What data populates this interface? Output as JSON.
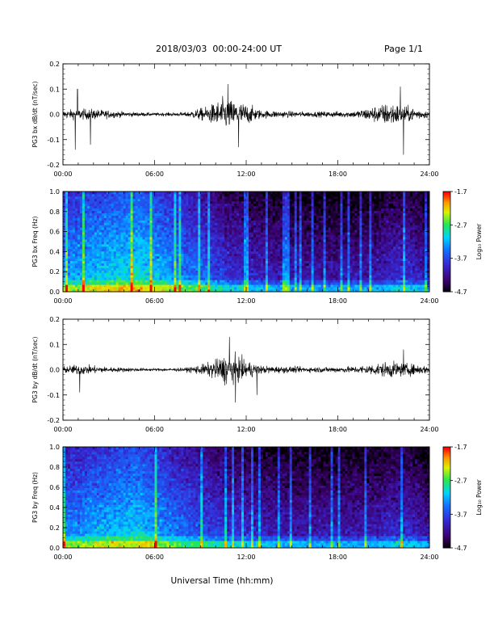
{
  "header": {
    "date_range": "2018/03/03  00:00-24:00 UT",
    "page": "Page 1/1"
  },
  "xlabel": "Universal Time (hh:mm)",
  "time_ticks": [
    "00:00",
    "06:00",
    "12:00",
    "18:00",
    "24:00"
  ],
  "colorbar": {
    "label": "Log₁₀ Power",
    "ticks": [
      "-1.7",
      "-2.7",
      "-3.7",
      "-4.7"
    ],
    "range": [
      -4.7,
      -1.7
    ]
  },
  "chart_data": [
    {
      "type": "line",
      "ylabel": "PG3 bx dB/dt (nT/sec)",
      "x_range_hours": [
        0,
        24
      ],
      "ylim": [
        -0.2,
        0.2
      ],
      "yticks": [
        "0.2",
        "0.1",
        "0.0",
        "-0.1",
        "-0.2"
      ],
      "envelope": [
        {
          "hour": 0,
          "amp": 0.015
        },
        {
          "hour": 1,
          "amp": 0.02
        },
        {
          "hour": 2,
          "amp": 0.02
        },
        {
          "hour": 4,
          "amp": 0.01
        },
        {
          "hour": 6,
          "amp": 0.006
        },
        {
          "hour": 8,
          "amp": 0.008
        },
        {
          "hour": 9.5,
          "amp": 0.03
        },
        {
          "hour": 10.5,
          "amp": 0.06
        },
        {
          "hour": 12,
          "amp": 0.04
        },
        {
          "hour": 13,
          "amp": 0.015
        },
        {
          "hour": 16,
          "amp": 0.01
        },
        {
          "hour": 19,
          "amp": 0.012
        },
        {
          "hour": 21.5,
          "amp": 0.045
        },
        {
          "hour": 22.5,
          "amp": 0.03
        },
        {
          "hour": 24,
          "amp": 0.012
        }
      ],
      "spikes": [
        {
          "hour": 0.8,
          "value": -0.14
        },
        {
          "hour": 0.95,
          "value": 0.1
        },
        {
          "hour": 1.8,
          "value": -0.12
        },
        {
          "hour": 10.8,
          "value": 0.12
        },
        {
          "hour": 11.5,
          "value": -0.13
        },
        {
          "hour": 22.3,
          "value": -0.16
        },
        {
          "hour": 22.1,
          "value": 0.11
        }
      ]
    },
    {
      "type": "heatmap",
      "ylabel": "PG3 bx Freq (Hz)",
      "x_range_hours": [
        0,
        24
      ],
      "ylim": [
        0.0,
        1.0
      ],
      "yticks": [
        "1.0",
        "0.8",
        "0.6",
        "0.4",
        "0.2",
        "0.0"
      ],
      "z_units": "Log₁₀ Power",
      "zlim": [
        -4.7,
        -1.7
      ],
      "activity_profile": [
        {
          "hour": 0,
          "level": 0.45
        },
        {
          "hour": 3,
          "level": 0.55
        },
        {
          "hour": 5,
          "level": 0.6
        },
        {
          "hour": 7,
          "level": 0.45
        },
        {
          "hour": 9,
          "level": 0.35
        },
        {
          "hour": 11,
          "level": 0.2
        },
        {
          "hour": 14,
          "level": 0.12
        },
        {
          "hour": 17,
          "level": 0.08
        },
        {
          "hour": 20,
          "level": 0.1
        },
        {
          "hour": 22.5,
          "level": 0.2
        },
        {
          "hour": 24,
          "level": 0.08
        }
      ]
    },
    {
      "type": "line",
      "ylabel": "PG3 by dB/dt (nT/sec)",
      "x_range_hours": [
        0,
        24
      ],
      "ylim": [
        -0.2,
        0.2
      ],
      "yticks": [
        "0.2",
        "0.1",
        "0.0",
        "-0.1",
        "-0.2"
      ],
      "envelope": [
        {
          "hour": 0,
          "amp": 0.012
        },
        {
          "hour": 1,
          "amp": 0.02
        },
        {
          "hour": 3,
          "amp": 0.01
        },
        {
          "hour": 6,
          "amp": 0.005
        },
        {
          "hour": 8,
          "amp": 0.007
        },
        {
          "hour": 9.5,
          "amp": 0.025
        },
        {
          "hour": 10.8,
          "amp": 0.06
        },
        {
          "hour": 12,
          "amp": 0.035
        },
        {
          "hour": 13,
          "amp": 0.015
        },
        {
          "hour": 16,
          "amp": 0.01
        },
        {
          "hour": 19,
          "amp": 0.012
        },
        {
          "hour": 21.5,
          "amp": 0.03
        },
        {
          "hour": 24,
          "amp": 0.014
        }
      ],
      "spikes": [
        {
          "hour": 1.1,
          "value": -0.09
        },
        {
          "hour": 10.9,
          "value": 0.13
        },
        {
          "hour": 11.3,
          "value": -0.13
        },
        {
          "hour": 12.7,
          "value": -0.1
        },
        {
          "hour": 22.3,
          "value": 0.08
        }
      ]
    },
    {
      "type": "heatmap",
      "ylabel": "PG3 by Freq (Hz)",
      "x_range_hours": [
        0,
        24
      ],
      "ylim": [
        0.0,
        1.0
      ],
      "yticks": [
        "1.0",
        "0.8",
        "0.6",
        "0.4",
        "0.2",
        "0.0"
      ],
      "z_units": "Log₁₀ Power",
      "zlim": [
        -4.7,
        -1.7
      ],
      "activity_profile": [
        {
          "hour": 0,
          "level": 0.4
        },
        {
          "hour": 3,
          "level": 0.5
        },
        {
          "hour": 5,
          "level": 0.55
        },
        {
          "hour": 7,
          "level": 0.4
        },
        {
          "hour": 9,
          "level": 0.3
        },
        {
          "hour": 11,
          "level": 0.2
        },
        {
          "hour": 14,
          "level": 0.12
        },
        {
          "hour": 17,
          "level": 0.1
        },
        {
          "hour": 20,
          "level": 0.12
        },
        {
          "hour": 22.5,
          "level": 0.18
        },
        {
          "hour": 24,
          "level": 0.08
        }
      ]
    }
  ]
}
